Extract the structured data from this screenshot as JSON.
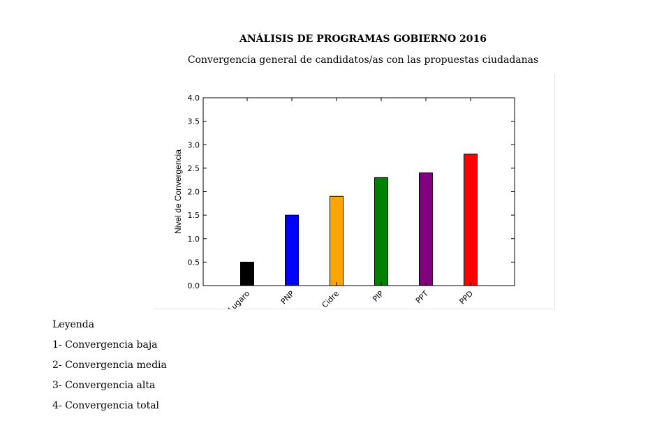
{
  "chart_data": {
    "type": "bar",
    "title": "ANÁLISIS DE PROGRAMAS GOBIERNO 2016",
    "subtitle": "Convergencia general de candidatos/as con las propuestas ciudadanas",
    "xlabel": "",
    "ylabel": "Nivel de Convergencia",
    "categories": [
      "Lugaro",
      "PNP",
      "Cidre",
      "PIP",
      "PPT",
      "PPD"
    ],
    "values": [
      0.5,
      1.5,
      1.9,
      2.3,
      2.4,
      2.8
    ],
    "colors": [
      "#000000",
      "#0000ff",
      "#ffa500",
      "#008000",
      "#800080",
      "#ff0000"
    ],
    "ylim": [
      0,
      4.0
    ],
    "yticks": [
      "0.0",
      "0.5",
      "1.0",
      "1.5",
      "2.0",
      "2.5",
      "3.0",
      "3.5",
      "4.0"
    ],
    "grid": false
  },
  "legend": {
    "heading": "Leyenda",
    "items": [
      "1- Convergencia baja",
      "2- Convergencia media",
      "3- Convergencia alta",
      "4- Convergencia total"
    ]
  }
}
